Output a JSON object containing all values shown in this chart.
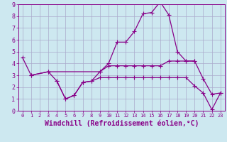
{
  "background_color": "#cde8f0",
  "grid_color": "#aaaacc",
  "line_color": "#880088",
  "xlabel": "Windchill (Refroidissement éolien,°C)",
  "xlim": [
    -0.5,
    23.5
  ],
  "ylim": [
    0,
    9
  ],
  "xticks": [
    0,
    1,
    2,
    3,
    4,
    5,
    6,
    7,
    8,
    9,
    10,
    11,
    12,
    13,
    14,
    15,
    16,
    17,
    18,
    19,
    20,
    21,
    22,
    23
  ],
  "yticks": [
    0,
    1,
    2,
    3,
    4,
    5,
    6,
    7,
    8,
    9
  ],
  "series": [
    {
      "x": [
        0,
        1,
        3,
        4,
        5,
        6,
        7,
        8,
        9,
        10,
        11,
        12,
        13,
        14,
        15,
        16,
        17,
        18,
        19,
        20,
        21,
        22,
        23
      ],
      "y": [
        4.5,
        3.0,
        3.3,
        2.5,
        1.0,
        1.3,
        2.4,
        2.5,
        3.3,
        4.0,
        5.8,
        5.8,
        6.7,
        8.2,
        8.3,
        9.2,
        8.1,
        5.0,
        4.2,
        4.2,
        2.7,
        1.4,
        1.5
      ]
    },
    {
      "x": [
        1,
        3,
        9,
        10,
        11,
        12,
        13,
        14,
        15,
        16,
        17,
        18,
        19,
        20
      ],
      "y": [
        3.0,
        3.3,
        3.3,
        3.8,
        3.8,
        3.8,
        3.8,
        3.8,
        3.8,
        3.8,
        4.2,
        4.2,
        4.2,
        4.2
      ]
    },
    {
      "x": [
        4,
        5,
        6,
        7,
        8,
        9,
        10,
        11,
        12,
        13,
        14,
        15,
        16,
        17,
        18,
        19,
        20,
        21,
        22,
        23
      ],
      "y": [
        2.5,
        1.0,
        1.3,
        2.4,
        2.5,
        2.8,
        2.8,
        2.8,
        2.8,
        2.8,
        2.8,
        2.8,
        2.8,
        2.8,
        2.8,
        2.8,
        2.1,
        1.5,
        0.1,
        1.5
      ]
    }
  ],
  "marker": "+",
  "markersize": 4,
  "markeredgewidth": 0.8,
  "linewidth": 0.9,
  "tick_fontsize": 6,
  "label_fontsize": 7,
  "label_color": "#880088",
  "tick_color": "#880088",
  "spine_color": "#880088"
}
